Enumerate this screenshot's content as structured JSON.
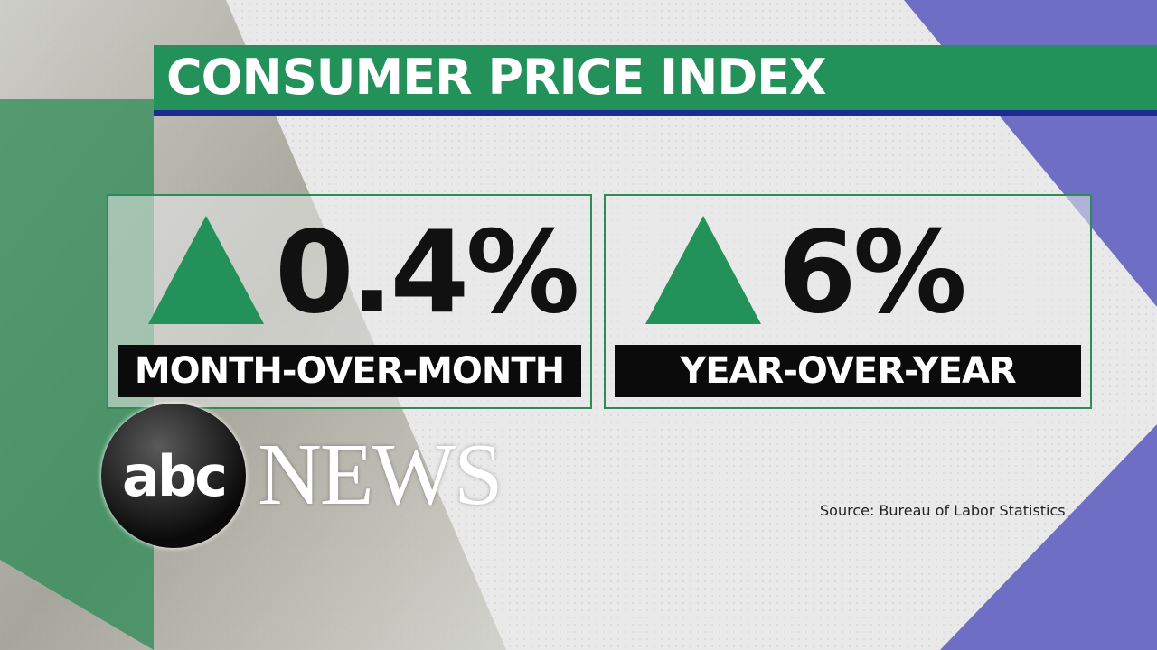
{
  "header": {
    "title": "CONSUMER PRICE INDEX"
  },
  "cards": [
    {
      "value": "0.4%",
      "label": "MONTH-OVER-MONTH"
    },
    {
      "value": "6%",
      "label": "YEAR-OVER-YEAR"
    }
  ],
  "source": "Source: Bureau of Labor Statistics",
  "logo": {
    "mark": "abc",
    "word": "NEWS"
  }
}
